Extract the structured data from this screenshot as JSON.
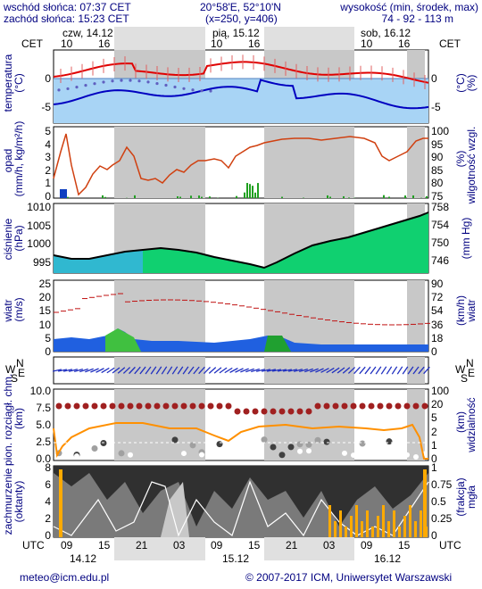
{
  "header": {
    "sunrise": "wschód słońca: 07:37 CET",
    "sunset": "zachód słońca: 15:23 CET",
    "coords": "20°58'E, 52°10'N",
    "grid": "(x=250, y=406)",
    "height_label": "wysokość (min, środek, max)",
    "height_values": "74 - 92 - 113 m"
  },
  "timeline": {
    "zone_left": "CET",
    "zone_right": "CET",
    "days_top": [
      "czw, 14.12",
      "pią, 15.12",
      "sob, 16.12"
    ],
    "hours_top": [
      "10",
      "16",
      "22",
      "04",
      "10",
      "16",
      "22",
      "04",
      "10",
      "16"
    ],
    "zone_bottom_left": "UTC",
    "zone_bottom_right": "UTC",
    "hours_bottom": [
      "09",
      "15",
      "21",
      "03",
      "09",
      "15",
      "21",
      "03",
      "09",
      "15"
    ],
    "days_bottom": [
      "14.12",
      "15.12",
      "16.12"
    ]
  },
  "panels": {
    "temperature": {
      "label": "temperatura",
      "unit": "(°C)",
      "ticks_left": [
        "0",
        "-5"
      ],
      "ticks_right": [
        "0",
        "-5"
      ]
    },
    "precip": {
      "label": "opad",
      "unit": "(mm/h, kg/m²/h)",
      "right_label": "wilgotność wzgl.",
      "right_unit": "(%)",
      "ticks_left": [
        "5",
        "4",
        "3",
        "2",
        "1",
        "0"
      ],
      "ticks_right": [
        "100",
        "95",
        "90",
        "85",
        "80",
        "75"
      ]
    },
    "pressure": {
      "label": "ciśnienie",
      "unit": "(hPa)",
      "right_unit": "(mm Hg)",
      "ticks_left": [
        "1010",
        "1005",
        "1000",
        "995"
      ],
      "ticks_right": [
        "758",
        "754",
        "750",
        "746"
      ]
    },
    "wind": {
      "label": "wiatr",
      "unit": "(m/s)",
      "right_label": "wiatr",
      "right_unit": "(km/h)",
      "ticks_left": [
        "25",
        "20",
        "15",
        "10",
        "5",
        "0"
      ],
      "ticks_right": [
        "90",
        "72",
        "54",
        "36",
        "18",
        "0"
      ]
    },
    "wind_dir": {
      "compass_left": [
        "N",
        "W",
        "E",
        "S"
      ],
      "compass_right": [
        "N",
        "W",
        "E",
        "S"
      ]
    },
    "clouds": {
      "label": "pion. rozciągł. chm.",
      "unit": "(km)",
      "right_label": "widzialność",
      "right_unit": "(km)",
      "ticks_left": [
        "10.0",
        "7.5",
        "5.0",
        "2.5",
        "0.0"
      ],
      "ticks_right": [
        "100",
        "20",
        "5",
        "2",
        "1",
        "0"
      ]
    },
    "cover": {
      "label": "zachmurzenie",
      "unit": "(oktanty)",
      "right_label": "mgła",
      "right_unit": "(frakcja)",
      "ticks_left": [
        "8",
        "6",
        "4",
        "2",
        "0"
      ],
      "ticks_right": [
        "1",
        "0.75",
        "0.5",
        "0.25",
        "0"
      ]
    }
  },
  "footer": {
    "email": "meteo@icm.edu.pl",
    "copyright": "© 2007-2017 ICM, Uniwersytet Warszawski"
  },
  "colors": {
    "text": "#000080",
    "temp_line": "#e00000",
    "dew_line": "#0000c0",
    "sky_blue": "#6fb6ee",
    "light_blue": "#a8d4f5",
    "night_gray": "#c8c8c8",
    "humidity_line": "#d04010",
    "pressure_fill": "#10d070",
    "wind_fill": "#2060e0",
    "visibility_line": "#ff9000",
    "fog_bars": "#ffaa00"
  }
}
